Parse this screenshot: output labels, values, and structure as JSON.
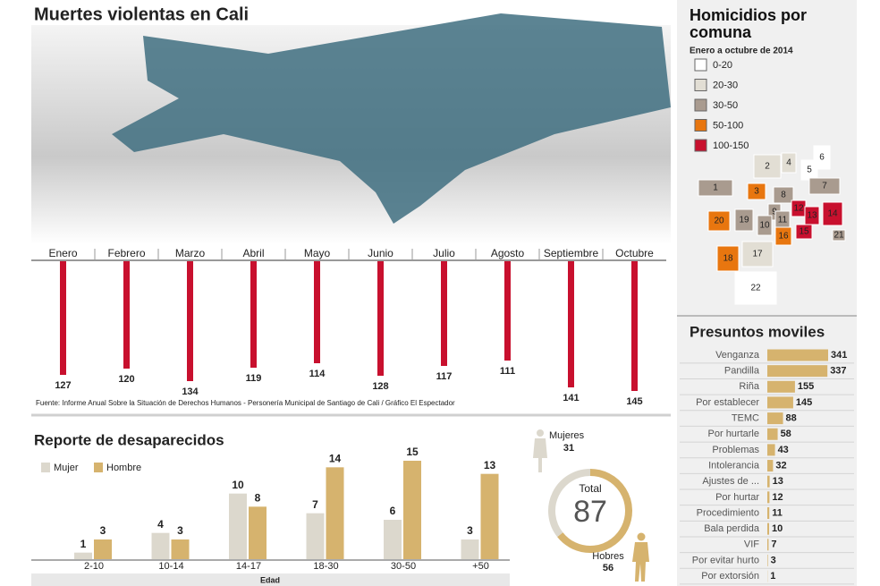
{
  "chart_data": [
    {
      "type": "bar",
      "title": "Muertes violentas en Cali",
      "categories": [
        "Enero",
        "Febrero",
        "Marzo",
        "Abril",
        "Mayo",
        "Junio",
        "Julio",
        "Agosto",
        "Septiembre",
        "Octubre"
      ],
      "values": [
        127,
        120,
        134,
        119,
        114,
        128,
        117,
        111,
        141,
        145
      ],
      "color": "#c8102e",
      "source": "Fuente: Informe Anual Sobre la Situación de Derechos Humanos - Personería Municipal de Santiago de Cali / Gráfico El Espectador"
    },
    {
      "type": "grouped-bar",
      "title": "Reporte de desaparecidos",
      "x_label": "Edad",
      "categories": [
        "2-10",
        "10-14",
        "14-17",
        "18-30",
        "30-50",
        "+50"
      ],
      "series": [
        {
          "name": "Mujer",
          "color": "#dcd8cd",
          "values": [
            1,
            4,
            10,
            7,
            6,
            3
          ]
        },
        {
          "name": "Hombre",
          "color": "#d6b36e",
          "values": [
            3,
            3,
            8,
            14,
            15,
            13
          ]
        }
      ]
    },
    {
      "type": "pie",
      "center_label": "Total",
      "total": 87,
      "categories": [
        "Mujeres",
        "Hobres"
      ],
      "values": [
        31,
        56
      ],
      "colors": [
        "#dcd8cd",
        "#d6b36e"
      ]
    },
    {
      "type": "hbar",
      "title": "Presuntos moviles",
      "categories": [
        "Venganza",
        "Pandilla",
        "Riña",
        "Por establecer",
        "TEMC",
        "Por hurtarle",
        "Problemas",
        "Intolerancia",
        "Ajustes de ...",
        "Por hurtar",
        "Procedimiento",
        "Bala perdida",
        "VIF",
        "Por evitar hurto",
        "Por extorsión"
      ],
      "values": [
        341,
        337,
        155,
        145,
        88,
        58,
        43,
        32,
        13,
        12,
        11,
        10,
        7,
        3,
        1
      ],
      "color": "#d6b36e"
    }
  ],
  "map": {
    "title": "Homicidios por comuna",
    "subtitle": "Enero a octubre de 2014",
    "legend": [
      {
        "label": "0-20",
        "color": "#ffffff"
      },
      {
        "label": "20-30",
        "color": "#e2ded4"
      },
      {
        "label": "30-50",
        "color": "#a99b8f"
      },
      {
        "label": "50-100",
        "color": "#e8760f"
      },
      {
        "label": "100-150",
        "color": "#c8102e"
      }
    ],
    "comunas": [
      {
        "label": "1",
        "color": "#a99b8f"
      },
      {
        "label": "2",
        "color": "#e2ded4"
      },
      {
        "label": "3",
        "color": "#e8760f"
      },
      {
        "label": "4",
        "color": "#e2ded4"
      },
      {
        "label": "5",
        "color": "#ffffff"
      },
      {
        "label": "6",
        "color": "#ffffff"
      },
      {
        "label": "7",
        "color": "#a99b8f"
      },
      {
        "label": "8",
        "color": "#a99b8f"
      },
      {
        "label": "9",
        "color": "#a99b8f"
      },
      {
        "label": "10",
        "color": "#a99b8f"
      },
      {
        "label": "11",
        "color": "#a99b8f"
      },
      {
        "label": "12",
        "color": "#c8102e"
      },
      {
        "label": "13",
        "color": "#c8102e"
      },
      {
        "label": "14",
        "color": "#c8102e"
      },
      {
        "label": "15",
        "color": "#c8102e"
      },
      {
        "label": "16",
        "color": "#e8760f"
      },
      {
        "label": "17",
        "color": "#e2ded4"
      },
      {
        "label": "18",
        "color": "#e8760f"
      },
      {
        "label": "19",
        "color": "#a99b8f"
      },
      {
        "label": "20",
        "color": "#e8760f"
      },
      {
        "label": "21",
        "color": "#a99b8f"
      },
      {
        "label": "22",
        "color": "#ffffff"
      }
    ]
  }
}
